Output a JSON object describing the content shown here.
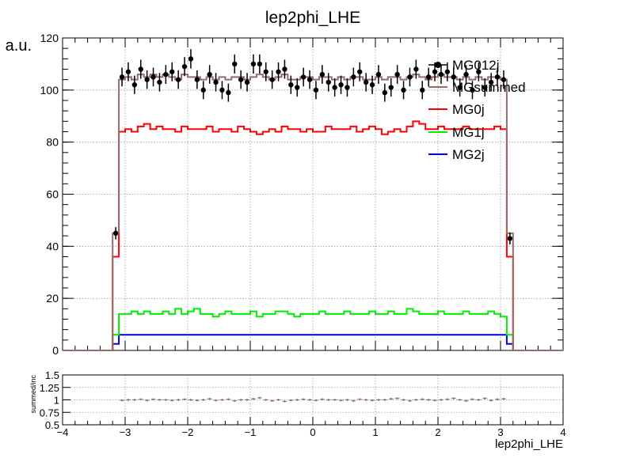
{
  "chart_data": [
    {
      "type": "line",
      "title": "lep2phi_LHE",
      "xlabel": "",
      "ylabel": "a.u.",
      "xlim": [
        -4,
        4
      ],
      "ylim": [
        0,
        120
      ],
      "grid": true,
      "legend_position": "top-right",
      "x_ticks": [
        "−4",
        "−3",
        "−2",
        "−1",
        "0",
        "1",
        "2",
        "3",
        "4"
      ],
      "y_ticks": [
        "0",
        "20",
        "40",
        "60",
        "80",
        "100",
        "120"
      ],
      "bins": {
        "low": -3.2,
        "high": 3.2,
        "count": 64
      },
      "series": [
        {
          "name": "MG012j",
          "style": "markers",
          "color": "#000000",
          "values": [
            45,
            105,
            107,
            102,
            108,
            104,
            105,
            103,
            106,
            107,
            104,
            109,
            112,
            104,
            100,
            106,
            103,
            100,
            99,
            110,
            104,
            103,
            110,
            110,
            107,
            104,
            107,
            108,
            102,
            101,
            105,
            104,
            100,
            106,
            103,
            101,
            102,
            101,
            105,
            107,
            103,
            102,
            106,
            99,
            101,
            106,
            100,
            105,
            108,
            100,
            105,
            107,
            106,
            107,
            105,
            101,
            106,
            100,
            107,
            101,
            103,
            105,
            104,
            43
          ]
        },
        {
          "name": "MGsummed",
          "style": "step",
          "color": "#946d6d",
          "values": [
            45,
            104,
            105,
            104,
            106,
            105,
            106,
            105,
            106,
            105,
            104,
            106,
            105,
            105,
            104,
            105,
            104,
            105,
            104,
            105,
            105,
            104,
            105,
            106,
            105,
            104,
            105,
            106,
            104,
            104,
            105,
            105,
            104,
            105,
            105,
            104,
            105,
            104,
            105,
            105,
            104,
            104,
            105,
            104,
            105,
            105,
            104,
            105,
            106,
            105,
            104,
            105,
            106,
            105,
            105,
            104,
            105,
            104,
            105,
            104,
            105,
            105,
            104,
            45
          ]
        },
        {
          "name": "MG0j",
          "style": "step",
          "color": "#ff0000",
          "values": [
            36,
            84,
            85,
            84,
            86,
            87,
            85,
            86,
            85,
            85,
            84,
            86,
            85,
            85,
            85,
            86,
            84,
            85,
            85,
            84,
            86,
            85,
            84,
            83,
            84,
            85,
            84,
            86,
            85,
            85,
            84,
            85,
            84,
            84,
            86,
            85,
            85,
            85,
            86,
            84,
            85,
            86,
            85,
            83,
            84,
            85,
            84,
            86,
            88,
            87,
            85,
            85,
            86,
            85,
            85,
            85,
            86,
            85,
            85,
            85,
            85,
            86,
            85,
            36
          ]
        },
        {
          "name": "MG1j",
          "style": "step",
          "color": "#00ee00",
          "values": [
            6,
            14,
            14,
            15,
            14,
            15,
            14,
            14,
            15,
            14,
            16,
            14,
            15,
            16,
            14,
            14,
            13,
            14,
            15,
            14,
            14,
            14,
            15,
            13,
            14,
            14,
            15,
            15,
            14,
            13,
            14,
            14,
            14,
            15,
            14,
            14,
            14,
            15,
            14,
            14,
            14,
            15,
            14,
            14,
            15,
            14,
            14,
            16,
            15,
            14,
            14,
            14,
            15,
            14,
            14,
            14,
            15,
            14,
            14,
            14,
            15,
            14,
            13,
            6
          ]
        },
        {
          "name": "MG2j",
          "style": "step",
          "color": "#0000dd",
          "values": [
            2.5,
            6,
            6,
            6,
            6,
            6,
            6,
            6,
            6,
            6,
            6,
            6,
            6,
            6,
            6,
            6,
            6,
            6,
            6,
            6,
            6,
            6,
            6,
            6,
            6,
            6,
            6,
            6,
            6,
            6,
            6,
            6,
            6,
            6,
            6,
            6,
            6,
            6,
            6,
            6,
            6,
            6,
            6,
            6,
            6,
            6,
            6,
            6,
            6,
            6,
            6,
            6,
            6,
            6,
            6,
            6,
            6,
            6,
            6,
            6,
            6,
            6,
            6,
            2.5
          ]
        }
      ]
    },
    {
      "type": "scatter",
      "title": "",
      "xlabel": "lep2phi_LHE",
      "ylabel": "summed/inc",
      "xlim": [
        -4,
        4
      ],
      "ylim": [
        0.5,
        1.5
      ],
      "grid": true,
      "x_ticks": [
        "−4",
        "−3",
        "−2",
        "−1",
        "0",
        "1",
        "2",
        "3",
        "4"
      ],
      "y_ticks": [
        "0.5",
        "0.75",
        "1",
        "1.25",
        "1.5"
      ],
      "bins": {
        "low": -3.1,
        "high": 3.1,
        "count": 62
      },
      "series": [
        {
          "name": "",
          "color": "#946d6d",
          "values": [
            0.99,
            1.0,
            1.0,
            1.01,
            0.99,
            1.01,
            1.0,
            1.0,
            0.99,
            1.0,
            1.01,
            1.0,
            0.99,
            1.0,
            1.02,
            0.99,
            1.0,
            1.01,
            0.98,
            1.0,
            1.0,
            1.02,
            1.04,
            1.0,
            0.98,
            1.0,
            0.97,
            0.99,
            1.0,
            1.01,
            1.0,
            0.99,
            1.01,
            1.0,
            1.0,
            0.99,
            1.0,
            0.98,
            1.01,
            1.0,
            0.99,
            1.0,
            1.0,
            1.02,
            1.03,
            1.0,
            0.98,
            1.0,
            1.01,
            1.0,
            0.99,
            1.0,
            1.01,
            1.03,
            1.0,
            0.98,
            1.01,
            1.0,
            1.03,
            0.99,
            1.01,
            1.02
          ]
        }
      ]
    }
  ]
}
